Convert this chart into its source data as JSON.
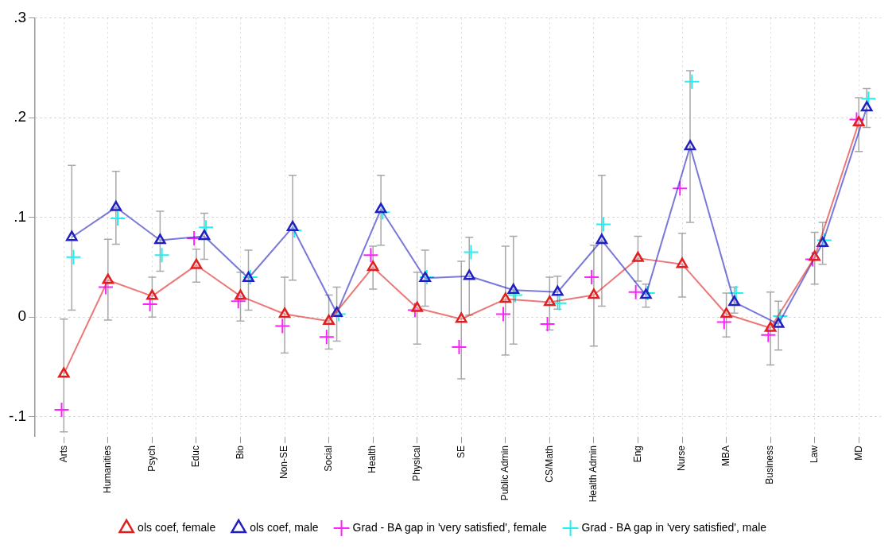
{
  "chart_data": {
    "type": "line",
    "categories": [
      "Arts",
      "Humanities",
      "Psych",
      "Educ",
      "Bio",
      "Non-SE",
      "Social",
      "Health",
      "Physical",
      "SE",
      "Public Admin",
      "CS/Math",
      "Health Admin",
      "Eng",
      "Nurse",
      "MBA",
      "Business",
      "Law",
      "MD"
    ],
    "ylim": [
      -0.12,
      0.3
    ],
    "yticks": [
      {
        "value": -0.1,
        "label": "-.1"
      },
      {
        "value": 0,
        "label": "0"
      },
      {
        "value": 0.1,
        "label": ".1"
      },
      {
        "value": 0.2,
        "label": ".2"
      },
      {
        "value": 0.3,
        "label": ".3"
      }
    ],
    "grid": true,
    "legend": "bottom",
    "series": [
      {
        "name": "ols coef, female",
        "marker": "triangle",
        "color": "#e02020",
        "values": [
          -0.057,
          0.037,
          0.021,
          0.052,
          0.021,
          0.003,
          -0.004,
          0.05,
          0.009,
          -0.002,
          0.018,
          0.015,
          0.022,
          0.059,
          0.053,
          0.003,
          -0.011,
          0.06,
          0.195
        ],
        "errors": [
          [
            -0.115,
            -0.002
          ],
          [
            -0.003,
            0.078
          ],
          [
            0,
            0.04
          ],
          [
            0.035,
            0.068
          ],
          [
            -0.004,
            0.045
          ],
          [
            -0.036,
            0.04
          ],
          [
            -0.032,
            0.022
          ],
          [
            0.028,
            0.071
          ],
          [
            -0.027,
            0.045
          ],
          [
            -0.062,
            0.056
          ],
          [
            -0.038,
            0.071
          ],
          [
            -0.013,
            0.04
          ],
          [
            -0.029,
            0.072
          ],
          [
            0.036,
            0.081
          ],
          [
            0.02,
            0.084
          ],
          [
            -0.02,
            0.024
          ],
          [
            -0.048,
            0.025
          ],
          [
            0.033,
            0.085
          ],
          [
            0.166,
            0.22
          ]
        ]
      },
      {
        "name": "ols coef, male",
        "marker": "triangle",
        "color": "#2020c0",
        "values": [
          0.08,
          0.11,
          0.077,
          0.081,
          0.039,
          0.09,
          0.004,
          0.108,
          0.039,
          0.041,
          0.027,
          0.025,
          0.077,
          0.022,
          0.171,
          0.015,
          -0.007,
          0.074,
          0.21
        ],
        "errors": [
          [
            0.007,
            0.152
          ],
          [
            0.073,
            0.146
          ],
          [
            0.046,
            0.106
          ],
          [
            0.058,
            0.104
          ],
          [
            0.007,
            0.067
          ],
          [
            0.037,
            0.142
          ],
          [
            -0.024,
            0.03
          ],
          [
            0.072,
            0.142
          ],
          [
            0.011,
            0.067
          ],
          [
            0.002,
            0.08
          ],
          [
            -0.027,
            0.081
          ],
          [
            0.008,
            0.041
          ],
          [
            0.011,
            0.142
          ],
          [
            0.01,
            0.033
          ],
          [
            0.095,
            0.247
          ],
          [
            0.004,
            0.03
          ],
          [
            -0.033,
            0.016
          ],
          [
            0.053,
            0.095
          ],
          [
            0.19,
            0.229
          ]
        ]
      },
      {
        "name": "Grad - BA gap in 'very satisfied', female",
        "type": "scatter",
        "marker": "cross",
        "color": "#ff20ff",
        "values": [
          -0.093,
          0.03,
          0.013,
          0.079,
          0.016,
          -0.009,
          -0.02,
          0.062,
          0.007,
          -0.03,
          0.003,
          -0.007,
          0.04,
          0.025,
          0.129,
          -0.005,
          -0.018,
          0.058,
          0.198
        ]
      },
      {
        "name": "Grad - BA gap in 'very satisfied', male",
        "type": "scatter",
        "marker": "cross",
        "color": "#20f0f0",
        "values": [
          0.06,
          0.099,
          0.062,
          0.09,
          0.04,
          0.087,
          0.003,
          0.105,
          0.04,
          0.065,
          0.022,
          0.014,
          0.093,
          0.024,
          0.236,
          0.024,
          0.001,
          0.077,
          0.219
        ]
      }
    ]
  }
}
